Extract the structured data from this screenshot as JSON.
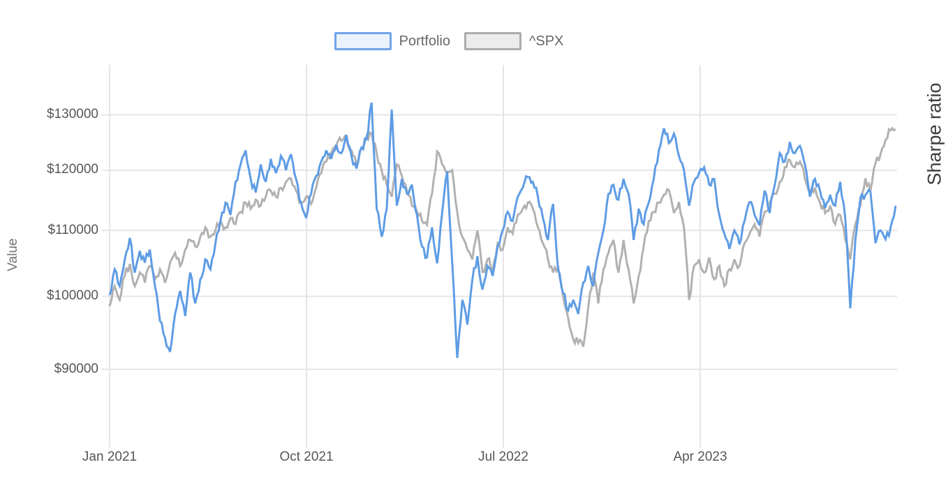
{
  "legend": {
    "items": [
      {
        "label": "Portfolio",
        "line_color": "#5E9CE5",
        "swatch_border": "#6FA3E9",
        "swatch_fill": "#EBF2FC"
      },
      {
        "label": "^SPX",
        "line_color": "#B1B1B1",
        "swatch_border": "#ACACAC",
        "swatch_fill": "#ECECEC"
      }
    ]
  },
  "y_axis": {
    "title": "Value",
    "scale": "log",
    "ticks": [
      {
        "label": "$130000",
        "value": 130000
      },
      {
        "label": "$120000",
        "value": 120000
      },
      {
        "label": "$110000",
        "value": 110000
      },
      {
        "label": "$100000",
        "value": 100000
      },
      {
        "label": "$90000",
        "value": 90000
      }
    ]
  },
  "x_axis": {
    "ticks": [
      {
        "label": "Jan 2021",
        "month_index": 0
      },
      {
        "label": "Oct 2021",
        "month_index": 9
      },
      {
        "label": "Jul 2022",
        "month_index": 18
      },
      {
        "label": "Apr 2023",
        "month_index": 27
      }
    ]
  },
  "right_label": "Sharpe ratio",
  "colors": {
    "gridline": "#E5E5E7",
    "tick_text": "#565656",
    "background": "#FFFFFF"
  },
  "chart_data": {
    "type": "line",
    "title": "",
    "xlabel": "",
    "ylabel": "Value",
    "y_scale": "log",
    "y_ticks": [
      90000,
      100000,
      110000,
      120000,
      130000
    ],
    "x_start": "2021-01-01",
    "x_end": "2023-12-29",
    "x_step_days": 7,
    "grid": true,
    "legend_position": "top",
    "series": [
      {
        "name": "Portfolio",
        "color": "#5E9CE5",
        "values": [
          100200,
          104000,
          101500,
          105500,
          108800,
          103500,
          106800,
          105000,
          107000,
          101500,
          96500,
          94200,
          92300,
          97500,
          100800,
          97200,
          103500,
          99000,
          102500,
          105500,
          104000,
          108000,
          111500,
          114500,
          112500,
          118000,
          121000,
          123500,
          118500,
          116200,
          121000,
          118000,
          122000,
          119500,
          122500,
          120000,
          122800,
          118500,
          114500,
          112000,
          116000,
          119000,
          121500,
          123500,
          122000,
          124500,
          123000,
          126300,
          122500,
          120300,
          124000,
          125500,
          132300,
          113500,
          109000,
          113500,
          131000,
          114000,
          118500,
          116000,
          117500,
          112500,
          107500,
          105800,
          110500,
          104900,
          112800,
          119800,
          105000,
          91500,
          99500,
          96000,
          102500,
          106000,
          101000,
          104500,
          103000,
          107500,
          110000,
          113000,
          111500,
          115500,
          117000,
          118800,
          118000,
          115500,
          112000,
          108500,
          114300,
          104000,
          100500,
          98000,
          99500,
          97500,
          102000,
          104500,
          101500,
          106500,
          110000,
          116000,
          117500,
          115000,
          118500,
          116000,
          108500,
          113500,
          111000,
          114500,
          118500,
          123500,
          127500,
          124800,
          126500,
          122500,
          120000,
          114000,
          118000,
          119600,
          120500,
          117500,
          118500,
          112500,
          109500,
          107100,
          110000,
          107800,
          111500,
          114600,
          112500,
          110800,
          116500,
          112800,
          117500,
          123000,
          121500,
          125000,
          123000,
          124300,
          121000,
          115500,
          118500,
          116500,
          113600,
          115800,
          114000,
          118000,
          112000,
          98300,
          108500,
          115300,
          115800,
          116300,
          108000,
          110000,
          108600,
          110500,
          114000
        ]
      },
      {
        "name": "^SPX",
        "color": "#B1B1B1",
        "values": [
          98600,
          101500,
          99500,
          103000,
          104800,
          101500,
          103500,
          102000,
          104500,
          102500,
          104000,
          102000,
          105000,
          106500,
          104500,
          107000,
          108500,
          107500,
          109000,
          110500,
          109000,
          110000,
          111500,
          110500,
          112000,
          111000,
          113000,
          114500,
          113500,
          115000,
          114000,
          115500,
          116500,
          115500,
          117000,
          118000,
          118600,
          116500,
          114500,
          115500,
          114300,
          117000,
          119500,
          121500,
          123000,
          124500,
          125200,
          125500,
          123500,
          121000,
          124000,
          126000,
          126500,
          123000,
          120000,
          117500,
          115500,
          121000,
          119000,
          116500,
          114000,
          113000,
          111500,
          110900,
          116000,
          123300,
          121000,
          119500,
          120000,
          113000,
          109000,
          107000,
          105500,
          110000,
          103600,
          105500,
          104000,
          108000,
          107000,
          110500,
          109500,
          112500,
          113500,
          114500,
          113500,
          110500,
          108000,
          105500,
          103500,
          104500,
          100000,
          97000,
          94000,
          93500,
          93000,
          98500,
          103500,
          99000,
          104000,
          106500,
          108500,
          103500,
          108500,
          104000,
          99000,
          103000,
          107500,
          111500,
          113000,
          114500,
          115800,
          116600,
          112800,
          114600,
          110500,
          99500,
          104500,
          105500,
          103500,
          105800,
          102500,
          104500,
          101500,
          104000,
          105500,
          104500,
          108000,
          109500,
          111000,
          109000,
          113000,
          114500,
          116000,
          118000,
          120500,
          121800,
          120500,
          121500,
          118500,
          116000,
          117000,
          114500,
          112800,
          114000,
          111000,
          112500,
          108500,
          105500,
          111000,
          114000,
          118600,
          116500,
          121200,
          122800,
          125400,
          127100,
          127300
        ]
      }
    ]
  }
}
